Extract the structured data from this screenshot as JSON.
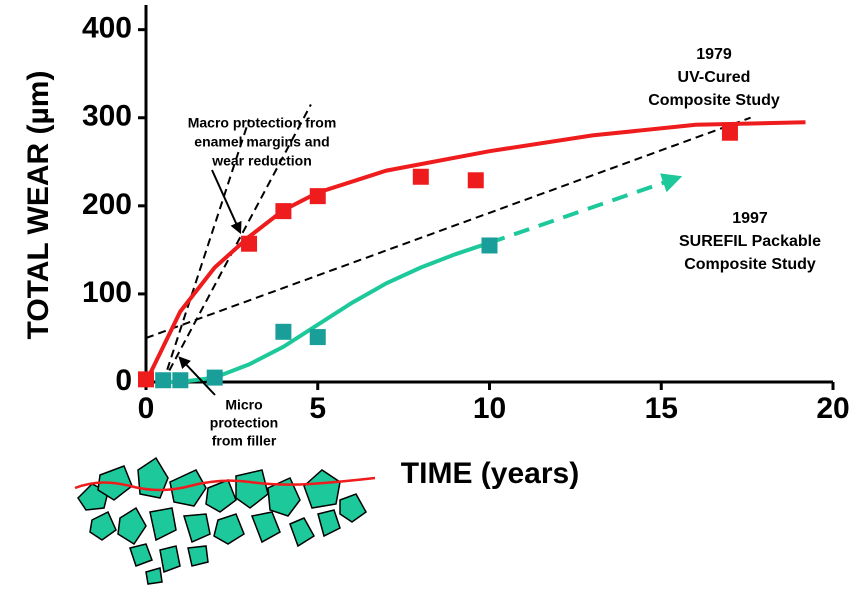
{
  "chart_data": {
    "type": "scatter",
    "x_label": "TIME (years)",
    "y_label": "TOTAL WEAR (µm)",
    "xlim": [
      0,
      20
    ],
    "ylim": [
      0,
      428
    ],
    "xticks": [
      0,
      5,
      10,
      15,
      20
    ],
    "yticks": [
      0,
      100,
      200,
      300,
      400
    ],
    "series": [
      {
        "style": "markers",
        "color": "#ee1c1c",
        "x": [
          0,
          3,
          4,
          5,
          8,
          9.6,
          17
        ],
        "values": [
          3,
          157,
          194,
          211,
          233,
          229,
          283
        ]
      },
      {
        "style": "markers",
        "color": "#1a9e9a",
        "x": [
          0.5,
          1,
          2,
          4,
          5,
          10
        ],
        "values": [
          2,
          2,
          5,
          57,
          51,
          155
        ]
      },
      {
        "style": "line",
        "color": "#ee1c1c",
        "x": [
          0,
          0.5,
          1,
          2,
          3,
          4,
          5,
          7,
          10,
          13,
          16,
          19.2
        ],
        "values": [
          0,
          40,
          80,
          130,
          165,
          195,
          215,
          240,
          262,
          280,
          292,
          295
        ]
      },
      {
        "style": "line",
        "color": "#1dc99b",
        "x": [
          0.5,
          1,
          2,
          3,
          4,
          5,
          6,
          7,
          8,
          9,
          10
        ],
        "values": [
          0,
          0,
          5,
          20,
          40,
          65,
          90,
          112,
          130,
          145,
          158
        ]
      },
      {
        "style": "arrow",
        "color": "#1dc99b",
        "x": [
          10,
          15.5
        ],
        "values": [
          158,
          232
        ]
      },
      {
        "style": "dashed",
        "color": "#000000",
        "x": [
          0,
          17.6
        ],
        "values": [
          50,
          300
        ]
      },
      {
        "style": "dashed",
        "color": "#000000",
        "x": [
          0.5,
          3
        ],
        "values": [
          0,
          298
        ]
      },
      {
        "style": "dashed",
        "color": "#000000",
        "x": [
          0.5,
          4.8
        ],
        "values": [
          0,
          315
        ]
      }
    ],
    "annotations": {
      "study_1979": [
        "1979",
        "UV-Cured",
        "Composite Study"
      ],
      "study_1997": [
        "1997",
        "SUREFIL Packable",
        "Composite Study"
      ],
      "macro": [
        "Macro protection from",
        "enamel margins and",
        "wear reduction"
      ],
      "micro": [
        "Micro",
        "protection",
        "from filler"
      ]
    }
  }
}
